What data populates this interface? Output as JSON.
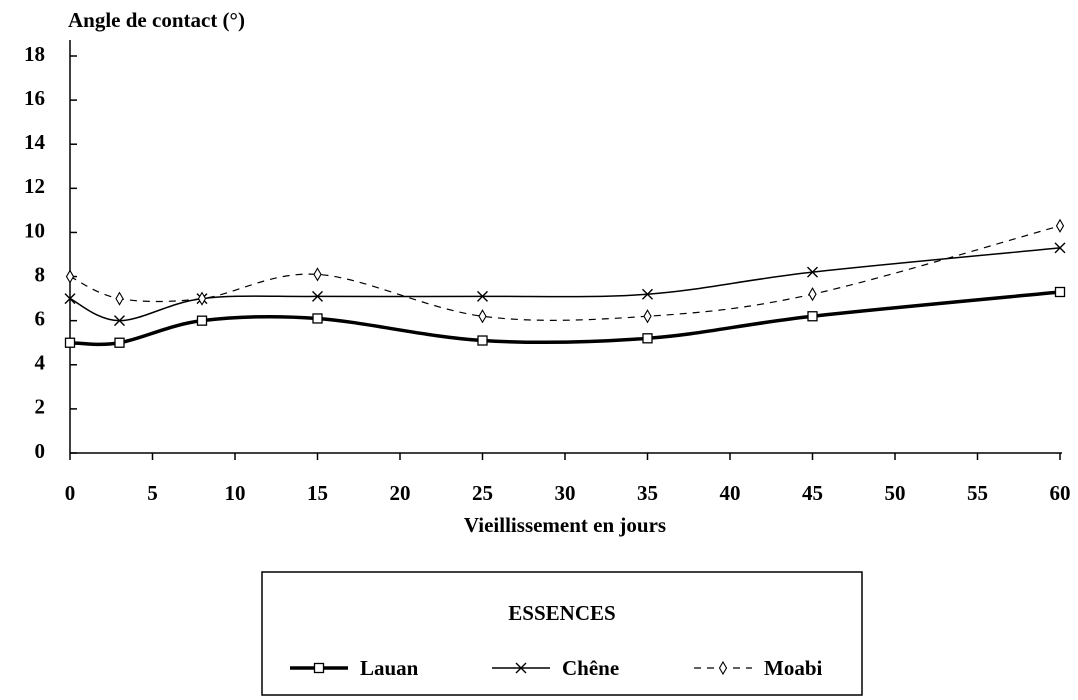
{
  "chart_data": {
    "type": "line",
    "ylabel": "Angle de contact (°)",
    "xlabel": "Vieillissement en jours",
    "legend_title": "ESSENCES",
    "legend": "bottom",
    "x": [
      0,
      3,
      8,
      15,
      25,
      35,
      45,
      60
    ],
    "series": [
      {
        "name": "Lauan",
        "color": "#000000",
        "marker": "square",
        "dash": false,
        "width": 3.5,
        "values": [
          5,
          5,
          6,
          6.1,
          5.1,
          5.2,
          6.2,
          7.3
        ]
      },
      {
        "name": "Chêne",
        "color": "#000000",
        "marker": "cross",
        "dash": false,
        "width": 1.5,
        "values": [
          7,
          6,
          7,
          7.1,
          7.1,
          7.2,
          8.2,
          9.3
        ]
      },
      {
        "name": "Moabi",
        "color": "#000000",
        "marker": "diamond",
        "dash": true,
        "width": 1.2,
        "values": [
          8,
          7,
          7,
          8.1,
          6.2,
          6.2,
          7.2,
          10.3
        ]
      }
    ],
    "xlim": [
      0,
      60
    ],
    "xticks": [
      0,
      5,
      10,
      15,
      20,
      25,
      30,
      35,
      40,
      45,
      50,
      55,
      60
    ],
    "ylim": [
      0,
      18
    ],
    "yticks": [
      0,
      2,
      4,
      6,
      8,
      10,
      12,
      14,
      16,
      18
    ],
    "grid": false
  }
}
